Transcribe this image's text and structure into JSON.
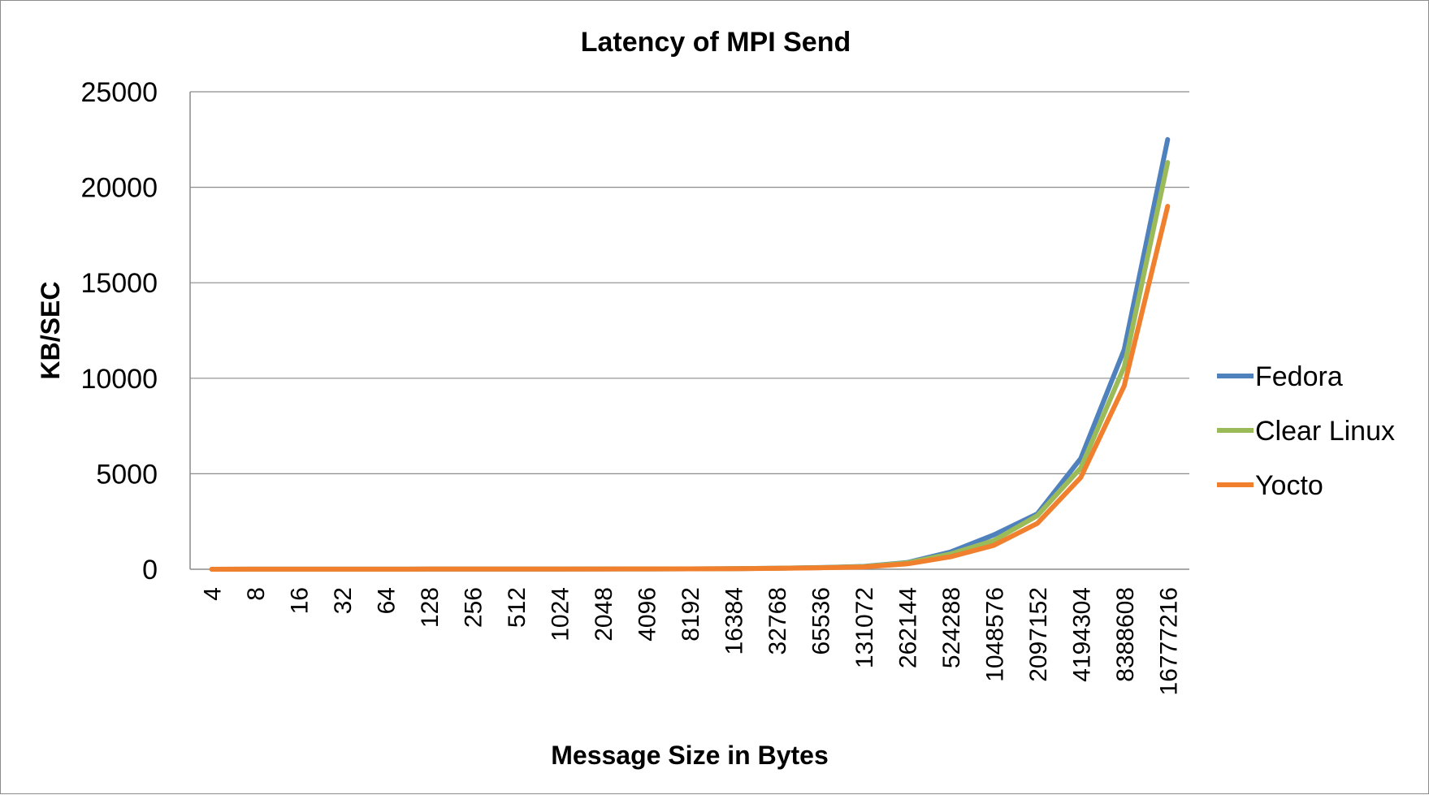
{
  "chart_data": {
    "type": "line",
    "title": "Latency of MPI Send",
    "xlabel": "Message Size in Bytes",
    "ylabel": "KB/SEC",
    "ylim": [
      0,
      25000
    ],
    "yticks": [
      0,
      5000,
      10000,
      15000,
      20000,
      25000
    ],
    "grid": true,
    "legend_position": "right",
    "categories": [
      "4",
      "8",
      "16",
      "32",
      "64",
      "128",
      "256",
      "512",
      "1024",
      "2048",
      "4096",
      "8192",
      "16384",
      "32768",
      "65536",
      "131072",
      "262144",
      "524288",
      "1048576",
      "2097152",
      "4194304",
      "8388608",
      "16777216"
    ],
    "series": [
      {
        "name": "Fedora",
        "color": "#4f81bd",
        "values": [
          2,
          3,
          4,
          5,
          6,
          7,
          8,
          10,
          12,
          15,
          18,
          22,
          30,
          55,
          90,
          150,
          350,
          900,
          1800,
          2900,
          5800,
          11500,
          22500
        ]
      },
      {
        "name": "Clear Linux",
        "color": "#9bbb59",
        "values": [
          2,
          3,
          4,
          5,
          6,
          7,
          8,
          10,
          12,
          15,
          18,
          22,
          28,
          50,
          85,
          140,
          330,
          800,
          1500,
          2800,
          5300,
          10600,
          21300
        ]
      },
      {
        "name": "Yocto",
        "color": "#f07f2e",
        "values": [
          2,
          3,
          4,
          5,
          6,
          7,
          8,
          9,
          11,
          13,
          16,
          20,
          25,
          45,
          75,
          120,
          280,
          650,
          1250,
          2400,
          4800,
          9600,
          19000
        ]
      }
    ]
  }
}
